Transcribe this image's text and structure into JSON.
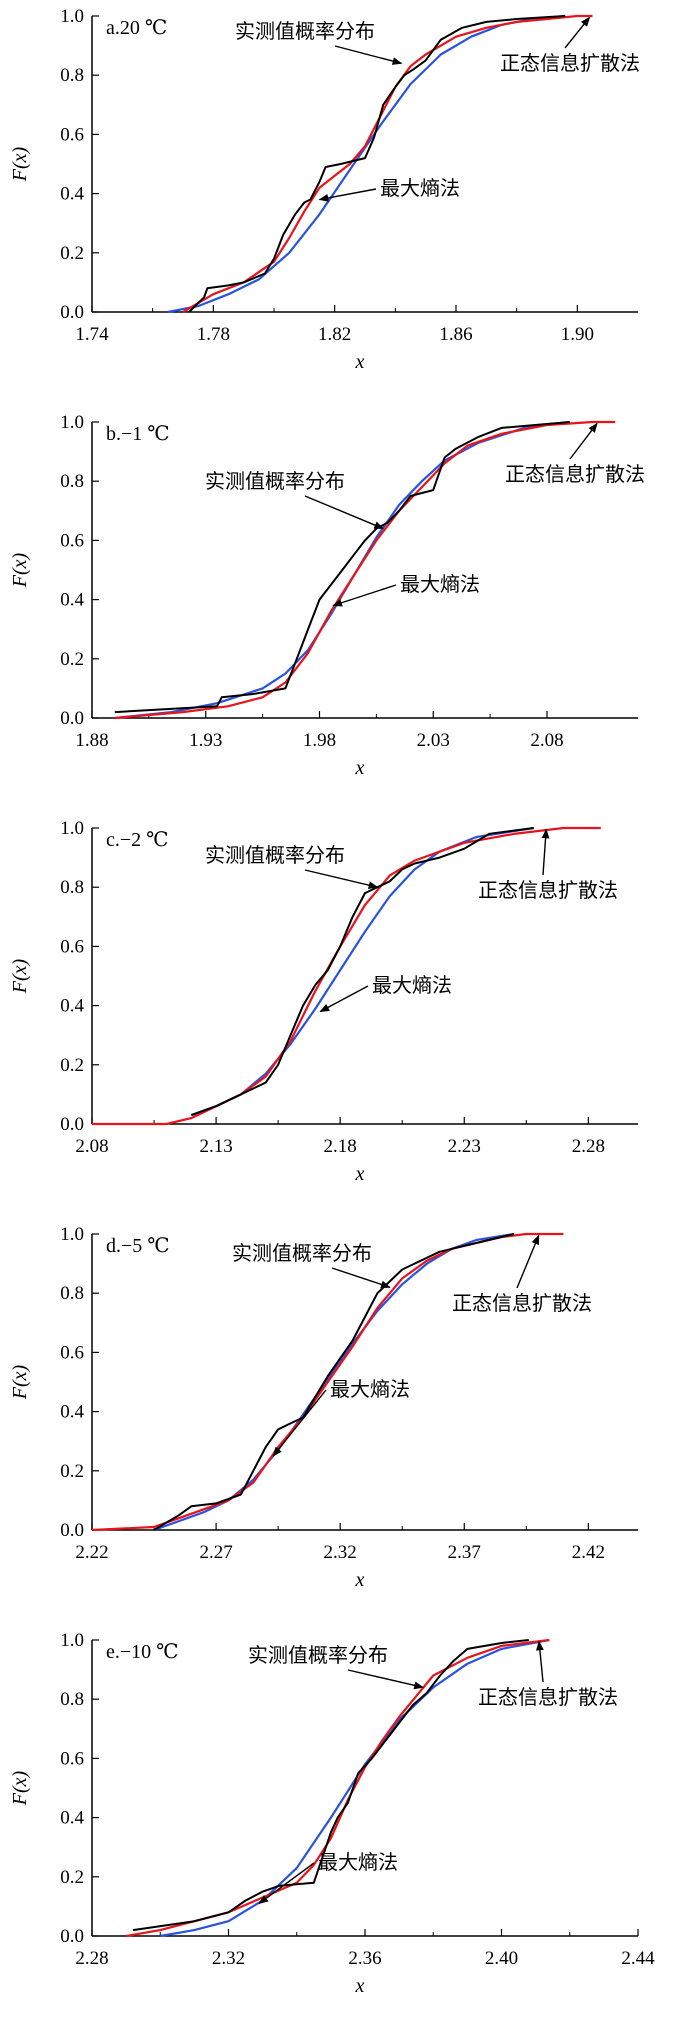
{
  "figure": {
    "ylabel": "F(x)",
    "xlabel": "x",
    "legend_labels": {
      "empirical": "实测值概率分布",
      "normal": "正态信息扩散法",
      "maxent": "最大熵法"
    },
    "colors": {
      "empirical": "#000000",
      "normal": "#e8141b",
      "maxent": "#2a52e0"
    }
  },
  "chart_data": [
    {
      "type": "line",
      "panel_label": "a.20 ℃",
      "xlabel": "x",
      "ylabel": "F(x)",
      "xlim": [
        1.74,
        1.92
      ],
      "ylim": [
        0,
        1.0
      ],
      "xticks": [
        "1.74",
        "1.78",
        "1.82",
        "1.86",
        "1.90"
      ],
      "yticks": [
        "0.0",
        "0.2",
        "0.4",
        "0.6",
        "0.8",
        "1.0"
      ],
      "series": [
        {
          "name": "实测值概率分布",
          "color": "#000000",
          "x": [
            1.772,
            1.777,
            1.778,
            1.785,
            1.79,
            1.797,
            1.8,
            1.803,
            1.807,
            1.81,
            1.812,
            1.815,
            1.817,
            1.822,
            1.826,
            1.83,
            1.833,
            1.836,
            1.84,
            1.843,
            1.846,
            1.85,
            1.855,
            1.862,
            1.87,
            1.88,
            1.896
          ],
          "y": [
            0.0,
            0.05,
            0.08,
            0.09,
            0.1,
            0.13,
            0.18,
            0.26,
            0.33,
            0.37,
            0.38,
            0.44,
            0.49,
            0.5,
            0.51,
            0.52,
            0.59,
            0.7,
            0.76,
            0.8,
            0.82,
            0.85,
            0.92,
            0.96,
            0.98,
            0.99,
            1.0
          ]
        },
        {
          "name": "正态信息扩散法",
          "color": "#e8141b",
          "x": [
            1.77,
            1.775,
            1.78,
            1.79,
            1.8,
            1.805,
            1.81,
            1.815,
            1.82,
            1.825,
            1.83,
            1.835,
            1.84,
            1.845,
            1.85,
            1.86,
            1.87,
            1.88,
            1.89,
            1.9,
            1.905
          ],
          "y": [
            0.0,
            0.03,
            0.06,
            0.1,
            0.17,
            0.25,
            0.34,
            0.42,
            0.46,
            0.5,
            0.56,
            0.66,
            0.76,
            0.83,
            0.87,
            0.93,
            0.96,
            0.98,
            0.99,
            1.0,
            1.0
          ]
        },
        {
          "name": "最大熵法",
          "color": "#2a52e0",
          "x": [
            1.765,
            1.775,
            1.785,
            1.795,
            1.805,
            1.815,
            1.825,
            1.835,
            1.845,
            1.855,
            1.865,
            1.875,
            1.885,
            1.896
          ],
          "y": [
            0.0,
            0.02,
            0.06,
            0.11,
            0.2,
            0.33,
            0.48,
            0.63,
            0.77,
            0.87,
            0.93,
            0.97,
            0.99,
            1.0
          ]
        }
      ],
      "annotations": [
        "实测值概率分布",
        "最大熵法",
        "正态信息扩散法"
      ]
    },
    {
      "type": "line",
      "panel_label": "b.−1 ℃",
      "xlabel": "x",
      "ylabel": "F(x)",
      "xlim": [
        1.88,
        2.12
      ],
      "ylim": [
        0,
        1.0
      ],
      "xticks": [
        "1.88",
        "1.93",
        "1.98",
        "2.03",
        "2.08"
      ],
      "yticks": [
        "0.0",
        "0.2",
        "0.4",
        "0.6",
        "0.8",
        "1.0"
      ],
      "series": [
        {
          "name": "实测值概率分布",
          "color": "#000000",
          "x": [
            1.89,
            1.935,
            1.937,
            1.95,
            1.965,
            1.97,
            1.975,
            1.98,
            1.985,
            1.99,
            1.995,
            2.0,
            2.005,
            2.01,
            2.015,
            2.02,
            2.025,
            2.03,
            2.035,
            2.04,
            2.05,
            2.06,
            2.09
          ],
          "y": [
            0.02,
            0.04,
            0.07,
            0.08,
            0.1,
            0.2,
            0.3,
            0.4,
            0.45,
            0.5,
            0.55,
            0.6,
            0.64,
            0.66,
            0.7,
            0.75,
            0.76,
            0.77,
            0.88,
            0.91,
            0.95,
            0.98,
            1.0
          ]
        },
        {
          "name": "正态信息扩散法",
          "color": "#e8141b",
          "x": [
            1.89,
            1.92,
            1.94,
            1.955,
            1.965,
            1.975,
            1.985,
            1.995,
            2.005,
            2.015,
            2.025,
            2.035,
            2.045,
            2.06,
            2.08,
            2.1,
            2.11
          ],
          "y": [
            0.0,
            0.02,
            0.04,
            0.07,
            0.12,
            0.22,
            0.36,
            0.48,
            0.6,
            0.7,
            0.78,
            0.86,
            0.92,
            0.96,
            0.99,
            1.0,
            1.0
          ]
        },
        {
          "name": "最大熵法",
          "color": "#2a52e0",
          "x": [
            1.89,
            1.915,
            1.935,
            1.955,
            1.965,
            1.975,
            1.985,
            1.995,
            2.005,
            2.015,
            2.025,
            2.035,
            2.05,
            2.07,
            2.09
          ],
          "y": [
            0.0,
            0.02,
            0.05,
            0.1,
            0.15,
            0.23,
            0.35,
            0.48,
            0.61,
            0.72,
            0.8,
            0.87,
            0.93,
            0.98,
            1.0
          ]
        }
      ],
      "annotations": [
        "实测值概率分布",
        "最大熵法",
        "正态信息扩散法"
      ]
    },
    {
      "type": "line",
      "panel_label": "c.−2 ℃",
      "xlabel": "x",
      "ylabel": "F(x)",
      "xlim": [
        2.08,
        2.3
      ],
      "ylim": [
        0,
        1.0
      ],
      "xticks": [
        "2.08",
        "2.13",
        "2.18",
        "2.23",
        "2.28"
      ],
      "yticks": [
        "0.0",
        "0.2",
        "0.4",
        "0.6",
        "0.8",
        "1.0"
      ],
      "series": [
        {
          "name": "实测值概率分布",
          "color": "#000000",
          "x": [
            2.12,
            2.13,
            2.14,
            2.15,
            2.155,
            2.16,
            2.165,
            2.17,
            2.175,
            2.18,
            2.185,
            2.19,
            2.195,
            2.2,
            2.205,
            2.21,
            2.22,
            2.23,
            2.24,
            2.258
          ],
          "y": [
            0.03,
            0.06,
            0.1,
            0.14,
            0.2,
            0.3,
            0.4,
            0.47,
            0.52,
            0.6,
            0.7,
            0.78,
            0.8,
            0.82,
            0.86,
            0.88,
            0.9,
            0.93,
            0.98,
            1.0
          ]
        },
        {
          "name": "正态信息扩散法",
          "color": "#e8141b",
          "x": [
            2.08,
            2.11,
            2.12,
            2.13,
            2.14,
            2.15,
            2.16,
            2.17,
            2.18,
            2.19,
            2.2,
            2.21,
            2.22,
            2.23,
            2.25,
            2.27,
            2.285
          ],
          "y": [
            0.0,
            0.0,
            0.02,
            0.06,
            0.1,
            0.16,
            0.28,
            0.45,
            0.6,
            0.74,
            0.84,
            0.89,
            0.92,
            0.95,
            0.98,
            1.0,
            1.0
          ]
        },
        {
          "name": "最大熵法",
          "color": "#2a52e0",
          "x": [
            2.12,
            2.13,
            2.14,
            2.15,
            2.16,
            2.17,
            2.18,
            2.19,
            2.2,
            2.21,
            2.22,
            2.235,
            2.258
          ],
          "y": [
            0.03,
            0.06,
            0.1,
            0.17,
            0.27,
            0.39,
            0.52,
            0.65,
            0.77,
            0.86,
            0.92,
            0.97,
            1.0
          ]
        }
      ],
      "annotations": [
        "实测值概率分布",
        "最大熵法",
        "正态信息扩散法"
      ]
    },
    {
      "type": "line",
      "panel_label": "d.−5 ℃",
      "xlabel": "x",
      "ylabel": "F(x)",
      "xlim": [
        2.22,
        2.44
      ],
      "ylim": [
        0,
        1.0
      ],
      "xticks": [
        "2.22",
        "2.27",
        "2.32",
        "2.37",
        "2.42"
      ],
      "yticks": [
        "0.0",
        "0.2",
        "0.4",
        "0.6",
        "0.8",
        "1.0"
      ],
      "series": [
        {
          "name": "实测值概率分布",
          "color": "#000000",
          "x": [
            2.245,
            2.255,
            2.26,
            2.27,
            2.28,
            2.285,
            2.29,
            2.295,
            2.3,
            2.305,
            2.31,
            2.315,
            2.32,
            2.325,
            2.33,
            2.335,
            2.34,
            2.345,
            2.35,
            2.36,
            2.37,
            2.38,
            2.39
          ],
          "y": [
            0.0,
            0.05,
            0.08,
            0.09,
            0.12,
            0.2,
            0.28,
            0.34,
            0.36,
            0.38,
            0.45,
            0.52,
            0.58,
            0.64,
            0.72,
            0.8,
            0.84,
            0.88,
            0.9,
            0.94,
            0.96,
            0.98,
            1.0
          ]
        },
        {
          "name": "正态信息扩散法",
          "color": "#e8141b",
          "x": [
            2.22,
            2.245,
            2.255,
            2.265,
            2.275,
            2.285,
            2.295,
            2.305,
            2.315,
            2.325,
            2.335,
            2.345,
            2.355,
            2.365,
            2.375,
            2.385,
            2.395,
            2.41
          ],
          "y": [
            0.0,
            0.01,
            0.04,
            0.07,
            0.1,
            0.16,
            0.28,
            0.38,
            0.5,
            0.62,
            0.75,
            0.85,
            0.91,
            0.95,
            0.97,
            0.99,
            1.0,
            1.0
          ]
        },
        {
          "name": "最大熵法",
          "color": "#2a52e0",
          "x": [
            2.245,
            2.255,
            2.265,
            2.275,
            2.285,
            2.295,
            2.305,
            2.315,
            2.325,
            2.335,
            2.345,
            2.355,
            2.365,
            2.375,
            2.39
          ],
          "y": [
            0.0,
            0.03,
            0.06,
            0.1,
            0.17,
            0.27,
            0.39,
            0.51,
            0.63,
            0.74,
            0.83,
            0.9,
            0.95,
            0.98,
            1.0
          ]
        }
      ],
      "annotations": [
        "实测值概率分布",
        "最大熵法",
        "正态信息扩散法"
      ]
    },
    {
      "type": "line",
      "panel_label": "e.−10 ℃",
      "xlabel": "x",
      "ylabel": "F(x)",
      "xlim": [
        2.28,
        2.44
      ],
      "ylim": [
        0,
        1.0
      ],
      "xticks": [
        "2.28",
        "2.32",
        "2.36",
        "2.40",
        "2.44"
      ],
      "yticks": [
        "0.0",
        "0.2",
        "0.4",
        "0.6",
        "0.8",
        "1.0"
      ],
      "series": [
        {
          "name": "实测值概率分布",
          "color": "#000000",
          "x": [
            2.292,
            2.31,
            2.32,
            2.325,
            2.33,
            2.335,
            2.345,
            2.35,
            2.352,
            2.355,
            2.358,
            2.362,
            2.366,
            2.37,
            2.374,
            2.378,
            2.382,
            2.386,
            2.39,
            2.4,
            2.408
          ],
          "y": [
            0.02,
            0.05,
            0.08,
            0.12,
            0.15,
            0.17,
            0.18,
            0.35,
            0.4,
            0.45,
            0.55,
            0.6,
            0.66,
            0.72,
            0.78,
            0.82,
            0.88,
            0.93,
            0.97,
            0.99,
            1.0
          ]
        },
        {
          "name": "正态信息扩散法",
          "color": "#e8141b",
          "x": [
            2.29,
            2.3,
            2.31,
            2.32,
            2.33,
            2.34,
            2.345,
            2.35,
            2.355,
            2.36,
            2.365,
            2.37,
            2.375,
            2.38,
            2.39,
            2.4,
            2.414
          ],
          "y": [
            0.0,
            0.02,
            0.05,
            0.08,
            0.13,
            0.18,
            0.24,
            0.33,
            0.46,
            0.57,
            0.66,
            0.74,
            0.81,
            0.88,
            0.94,
            0.98,
            1.0
          ]
        },
        {
          "name": "最大熵法",
          "color": "#2a52e0",
          "x": [
            2.3,
            2.31,
            2.32,
            2.33,
            2.34,
            2.35,
            2.36,
            2.37,
            2.38,
            2.39,
            2.4,
            2.414
          ],
          "y": [
            0.0,
            0.02,
            0.05,
            0.12,
            0.23,
            0.4,
            0.58,
            0.73,
            0.84,
            0.92,
            0.97,
            1.0
          ]
        }
      ],
      "annotations": [
        "实测值概率分布",
        "最大熵法",
        "正态信息扩散法"
      ]
    }
  ]
}
